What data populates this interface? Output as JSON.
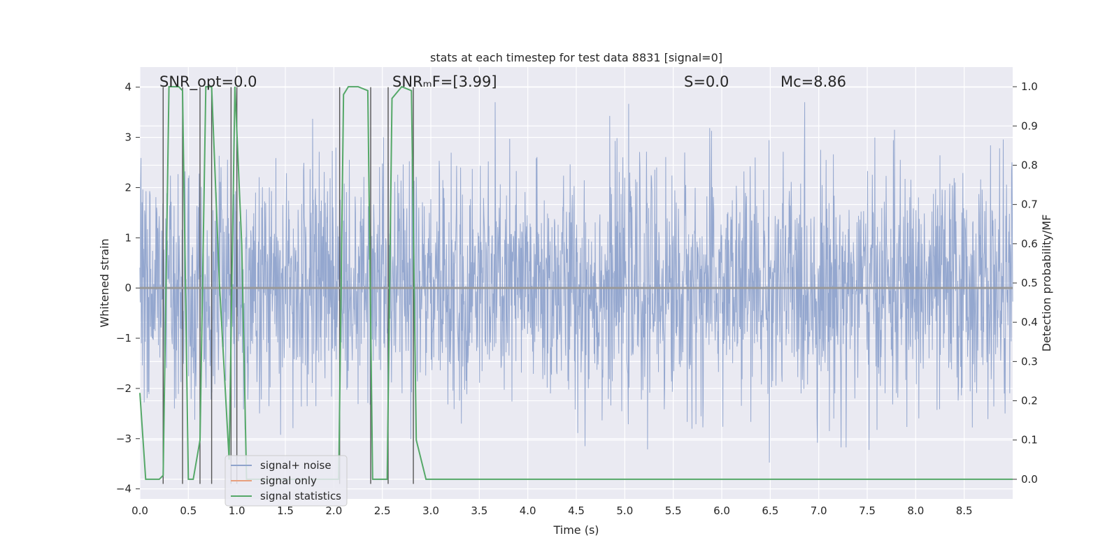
{
  "chart_data": {
    "type": "line",
    "title": "stats at each timestep for test data 8831 [signal=0]",
    "xlabel": "Time (s)",
    "ylabel_left": "Whitened strain",
    "ylabel_right": "Detection probability/MF",
    "xlim": [
      0.0,
      9.0
    ],
    "ylim_left": [
      -4.2,
      4.4
    ],
    "ylim_right": [
      -0.05,
      1.05
    ],
    "x_ticks": [
      0.0,
      0.5,
      1.0,
      1.5,
      2.0,
      2.5,
      3.0,
      3.5,
      4.0,
      4.5,
      5.0,
      5.5,
      6.0,
      6.5,
      7.0,
      7.5,
      8.0,
      8.5
    ],
    "x_tick_labels": [
      "0.0",
      "0.5",
      "1.0",
      "1.5",
      "2.0",
      "2.5",
      "3.0",
      "3.5",
      "4.0",
      "4.5",
      "5.0",
      "5.5",
      "6.0",
      "6.5",
      "7.0",
      "7.5",
      "8.0",
      "8.5"
    ],
    "y_left_ticks": [
      -4,
      -3,
      -2,
      -1,
      0,
      1,
      2,
      3,
      4
    ],
    "y_left_tick_labels": [
      "−4",
      "−3",
      "−2",
      "−1",
      "0",
      "1",
      "2",
      "3",
      "4"
    ],
    "y_right_ticks": [
      0.0,
      0.1,
      0.2,
      0.3,
      0.4,
      0.5,
      0.6,
      0.7,
      0.8,
      0.9,
      1.0
    ],
    "y_right_tick_labels": [
      "0.0",
      "0.1",
      "0.2",
      "0.3",
      "0.4",
      "0.5",
      "0.6",
      "0.7",
      "0.8",
      "0.9",
      "1.0"
    ],
    "grid": true,
    "annotations": [
      {
        "text": "SNR_opt=0.0",
        "x_data": 0.2
      },
      {
        "text": "SNRₘF=[3.99]",
        "x_data": 2.6
      },
      {
        "text": "S=0.0",
        "x_data": 5.62
      },
      {
        "text": "Mᴄ=8.86",
        "x_data": 6.62
      }
    ],
    "legend": {
      "placement": "lower-left",
      "entries": [
        {
          "label": "signal+ noise",
          "color": "#8fa3cc"
        },
        {
          "label": "signal only",
          "color": "#e8a07e"
        },
        {
          "label": "signal statistics",
          "color": "#55a868"
        }
      ]
    },
    "series": [
      {
        "name": "signal+ noise",
        "axis": "left",
        "style": "dense noise trace, amplitude roughly within ±3.6, near-uniform over 0–9 s",
        "envelope_upper": 2.4,
        "envelope_lower": -2.4,
        "spike_max": 3.7,
        "spike_min": -3.9
      },
      {
        "name": "signal only",
        "axis": "left",
        "constant_value": 0.0
      },
      {
        "name": "signal statistics",
        "axis": "right",
        "x": [
          0.0,
          0.06,
          0.2,
          0.24,
          0.3,
          0.4,
          0.44,
          0.5,
          0.55,
          0.62,
          0.68,
          0.74,
          0.82,
          0.92,
          0.98,
          1.05,
          1.1,
          2.05,
          2.1,
          2.15,
          2.25,
          2.35,
          2.4,
          2.45,
          2.55,
          2.6,
          2.7,
          2.8,
          2.85,
          2.95,
          3.0,
          9.0
        ],
        "values": [
          0.22,
          0.0,
          0.0,
          0.01,
          1.0,
          1.0,
          0.99,
          0.0,
          0.0,
          0.1,
          1.0,
          1.0,
          0.5,
          0.05,
          1.0,
          0.6,
          0.0,
          0.0,
          0.98,
          1.0,
          1.0,
          0.99,
          0.0,
          0.0,
          0.0,
          0.97,
          1.0,
          0.99,
          0.1,
          0.0,
          0.0,
          0.0
        ]
      }
    ],
    "vertical_markers": {
      "color": "#555555",
      "x": [
        0.24,
        0.44,
        0.62,
        0.74,
        0.94,
        1.0,
        2.06,
        2.38,
        2.56,
        2.82
      ],
      "y_top": 4.0,
      "y_bottom": -3.9
    },
    "colors": {
      "plot_bg": "#eaeaf2",
      "grid": "#ffffff",
      "noise": "#8fa3cc",
      "signal": "#e8a07e",
      "stats": "#55a868"
    }
  }
}
